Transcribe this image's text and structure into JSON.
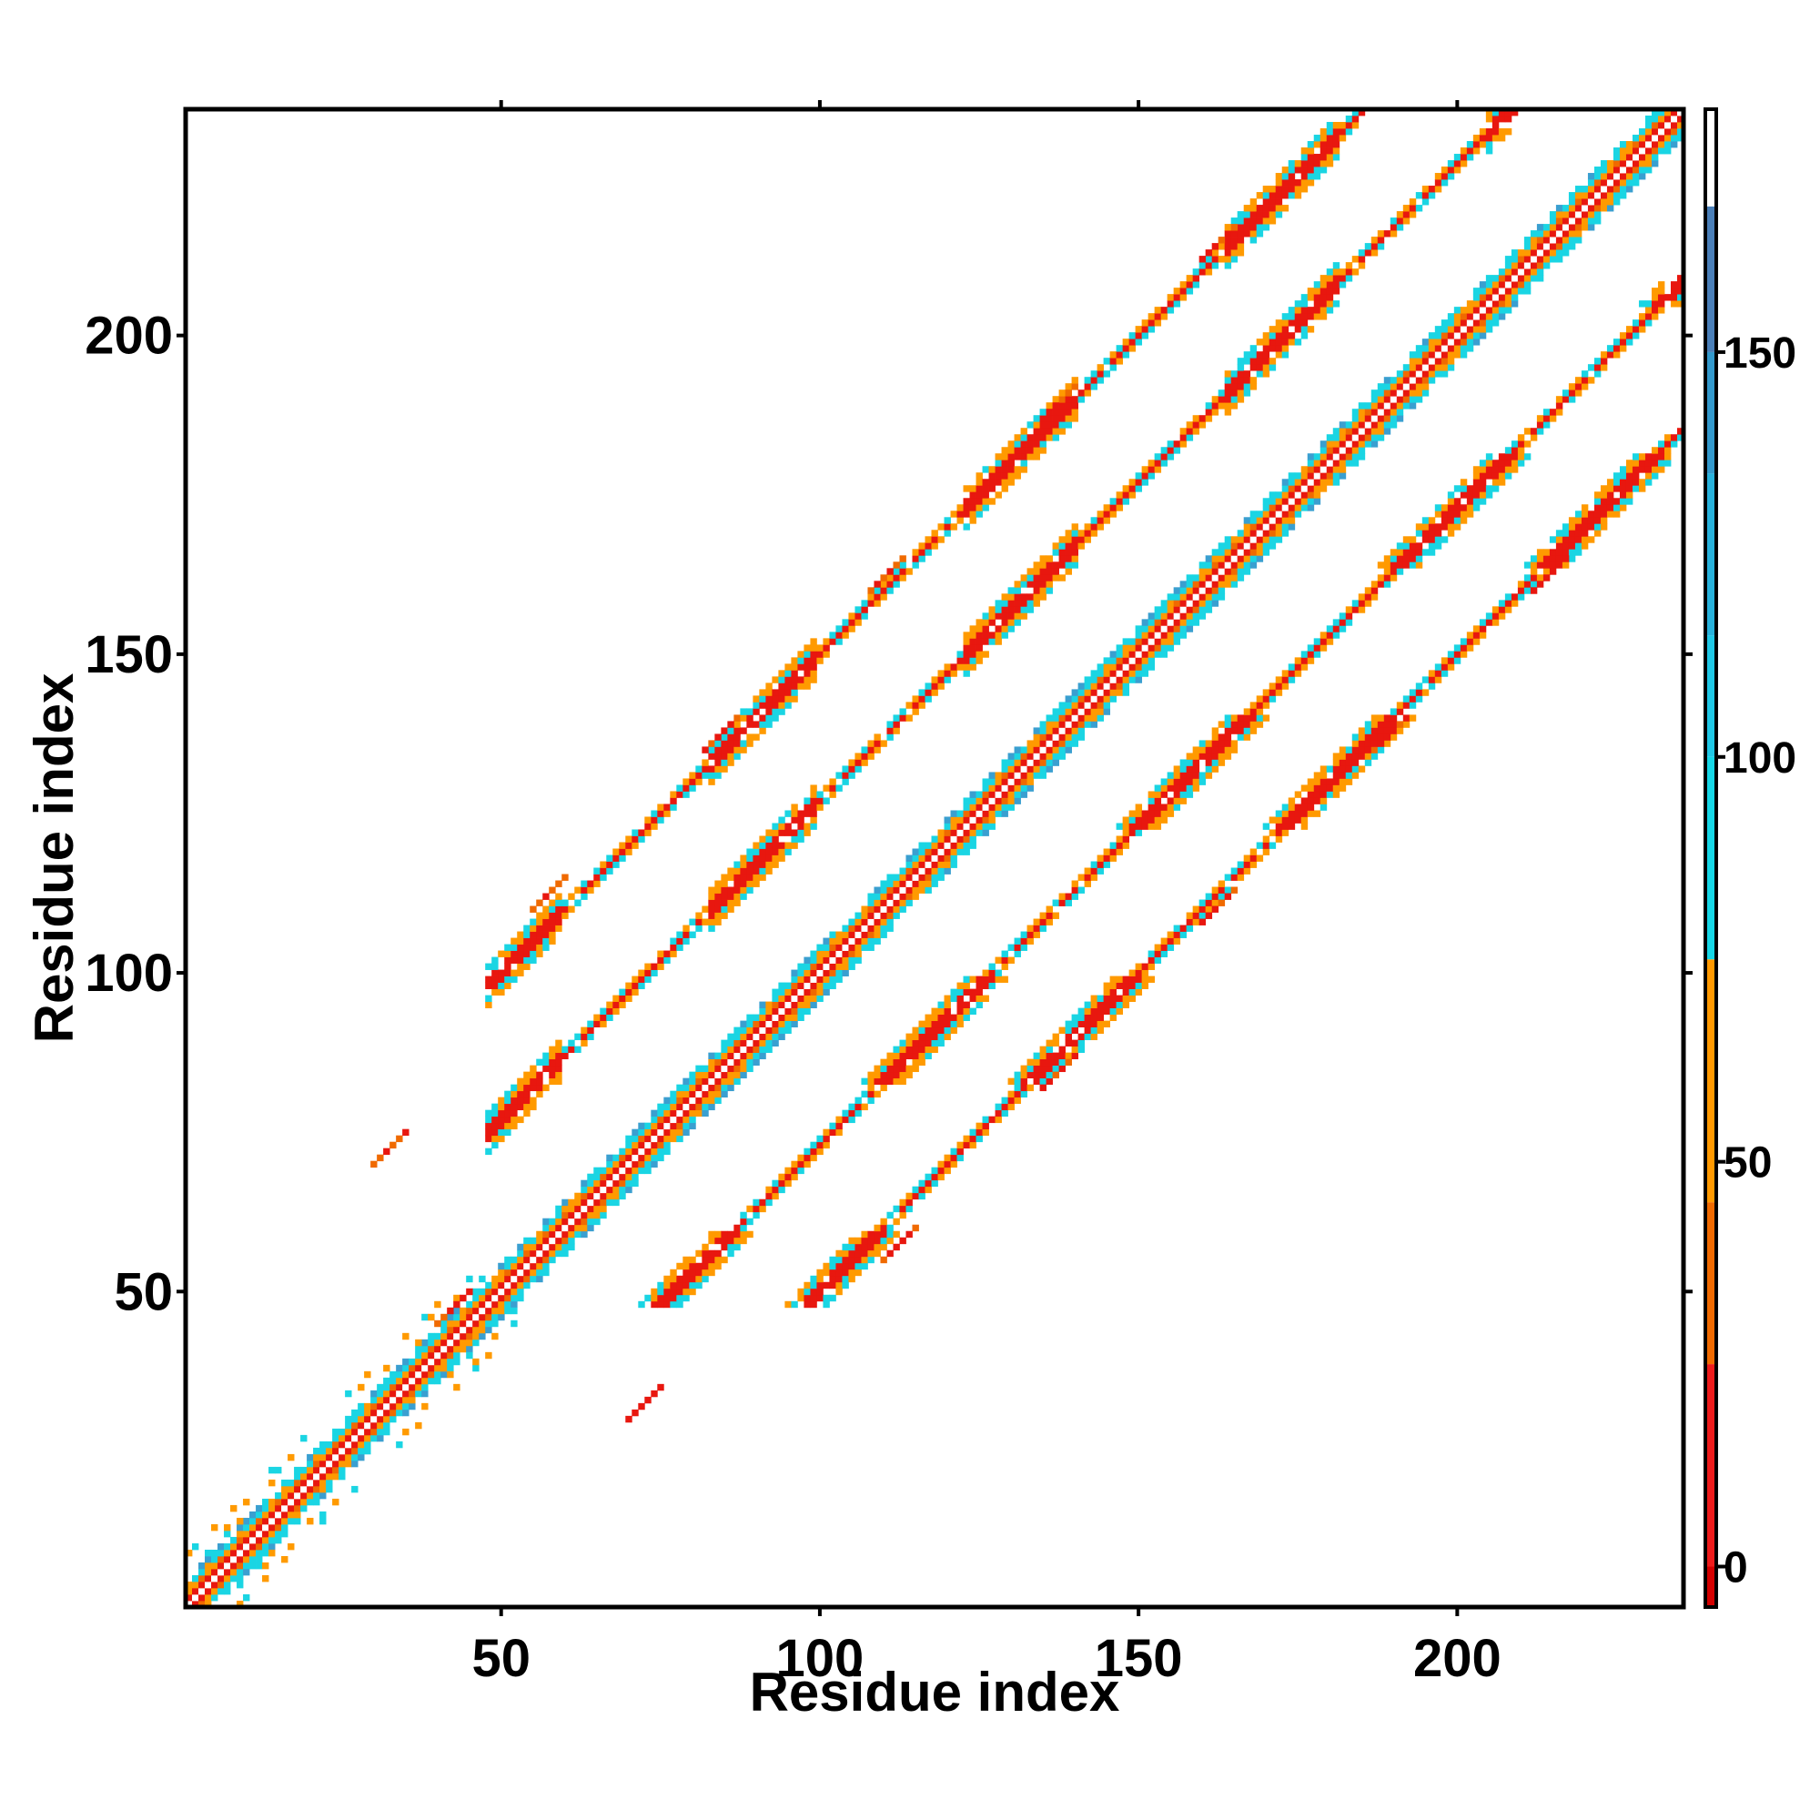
{
  "chart_data": {
    "type": "heatmap",
    "title": "",
    "xlabel": "Residue index",
    "ylabel": "Residue index",
    "xlim": [
      1,
      235
    ],
    "ylim": [
      1,
      235
    ],
    "xticks": [
      50,
      100,
      150,
      200
    ],
    "yticks": [
      50,
      100,
      150,
      200
    ],
    "grid": false,
    "colorbar": {
      "ticks": [
        0,
        50,
        100,
        150
      ],
      "range": [
        -5,
        180
      ],
      "bands": [
        {
          "from": -5,
          "to": 0,
          "color": "#d40000"
        },
        {
          "from": 0,
          "to": 25,
          "color": "#ee1c1c"
        },
        {
          "from": 25,
          "to": 45,
          "color": "#f06a00"
        },
        {
          "from": 45,
          "to": 75,
          "color": "#ff9900"
        },
        {
          "from": 75,
          "to": 100,
          "color": "#16d7e6"
        },
        {
          "from": 100,
          "to": 115,
          "color": "#20c8e6"
        },
        {
          "from": 115,
          "to": 135,
          "color": "#28b2dc"
        },
        {
          "from": 135,
          "to": 150,
          "color": "#3399cc"
        },
        {
          "from": 150,
          "to": 168,
          "color": "#4a7fb8"
        },
        {
          "from": 168,
          "to": 180,
          "color": "#ffffff"
        }
      ]
    },
    "palette": {
      "red": "#e8170f",
      "dark_orange": "#f06a00",
      "orange": "#ff9a00",
      "cyan": "#1ad5e3",
      "blue": "#3a9fd0"
    },
    "structure": {
      "diagonal_band_halfwidth": 4,
      "off_diagonal_offsets": [
        27,
        50
      ],
      "off_diagonal_span": [
        48,
        235
      ],
      "near_diagonal_span": [
        1,
        47
      ],
      "secondary_hotspots": [
        {
          "x": 40,
          "y": 45
        },
        {
          "x": 30,
          "y": 70
        },
        {
          "x": 70,
          "y": 30
        },
        {
          "x": 110,
          "y": 55
        },
        {
          "x": 55,
          "y": 110
        },
        {
          "x": 135,
          "y": 82
        },
        {
          "x": 82,
          "y": 135
        },
        {
          "x": 160,
          "y": 108
        },
        {
          "x": 108,
          "y": 160
        },
        {
          "x": 187,
          "y": 135
        },
        {
          "x": 135,
          "y": 187
        },
        {
          "x": 212,
          "y": 160
        },
        {
          "x": 160,
          "y": 212
        }
      ]
    }
  }
}
